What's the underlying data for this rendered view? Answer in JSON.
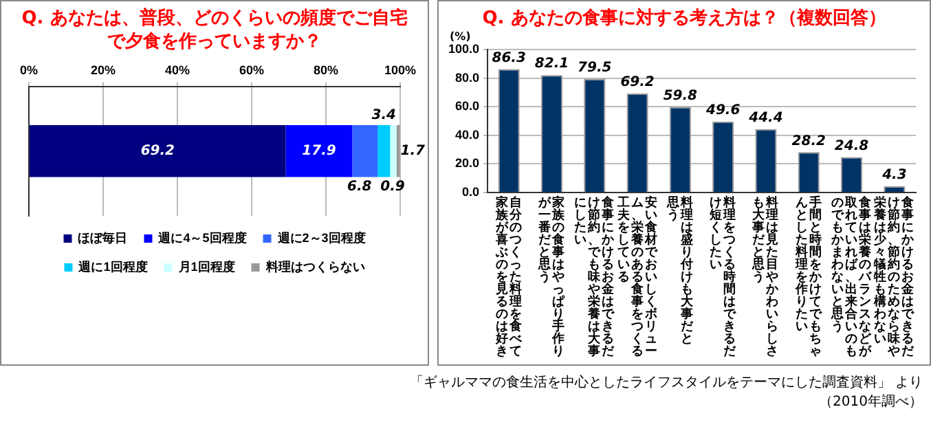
{
  "chart_data": [
    {
      "type": "bar",
      "orientation": "horizontal",
      "stacked": true,
      "title": "Q. あなたは、普段、どのくらいの頻度でご自宅で夕食を作っていますか？",
      "categories": [
        null
      ],
      "series": [
        {
          "name": "ほぼ毎日",
          "color": "#000080",
          "values": [
            69.2
          ]
        },
        {
          "name": "週に4～5回程度",
          "color": "#0000ff",
          "values": [
            17.9
          ]
        },
        {
          "name": "週に2～3回程度",
          "color": "#3366ff",
          "values": [
            6.8
          ]
        },
        {
          "name": "週に1回程度",
          "color": "#00ccff",
          "values": [
            3.4
          ]
        },
        {
          "name": "月1回程度",
          "color": "#ccffff",
          "values": [
            1.7
          ]
        },
        {
          "name": "料理はつくらない",
          "color": "#999999",
          "values": [
            0.9
          ]
        }
      ],
      "xlim": [
        0,
        100
      ],
      "xticks": [
        {
          "value": 0,
          "label": "0%"
        },
        {
          "value": 20,
          "label": "20%"
        },
        {
          "value": 40,
          "label": "40%"
        },
        {
          "value": 60,
          "label": "60%"
        },
        {
          "value": 80,
          "label": "80%"
        },
        {
          "value": 100,
          "label": "100%"
        }
      ],
      "grid": "x",
      "legend": "bottom",
      "data_labels": true
    },
    {
      "type": "bar",
      "title": "Q. あなたの食事に対する考え方は？（複数回答）",
      "ylabel": "(%)",
      "categories": [
        "自分のつくった料理を食べて家族が喜ぶのを見るのは好き",
        "家族の食事はやっぱり手作りが一番だと思う",
        "食事にかけるお金はできるだけ節約、でも味や栄養は大事にしたい",
        "安い食材でおいしくボリューム、栄養のある食事をつくる工夫をしている",
        "料理は盛り付けも大事だと思う",
        "料理をつくる時間はできるだけ短くしたい",
        "料理は見た目やかわいらしさも大事だと思う",
        "手間と時間をかけてでもちゃんとした料理を作りたい",
        "食事は栄養のバランスなどが取れていれば、出来合いのものでもかまわないと思う",
        "食事にかけるお金はできるだけ節約、節約のためなら味や栄養は少々犠牲も構わない"
      ],
      "values": [
        86.3,
        82.1,
        79.5,
        69.2,
        59.8,
        49.6,
        44.4,
        28.2,
        24.8,
        4.3
      ],
      "color": "#003366",
      "ylim": [
        0,
        100
      ],
      "yticks": [
        {
          "value": 0,
          "label": "0.0"
        },
        {
          "value": 20,
          "label": "20.0"
        },
        {
          "value": 40,
          "label": "40.0"
        },
        {
          "value": 60,
          "label": "60.0"
        },
        {
          "value": 80,
          "label": "80.0"
        },
        {
          "value": 100,
          "label": "100.0"
        }
      ],
      "grid": "y",
      "legend": false,
      "data_labels": true,
      "annotations": [
        "「ギャルママの食生活を中心としたライフスタイルをテーマにした調査資料」 より",
        "（2010年調べ）"
      ]
    }
  ]
}
